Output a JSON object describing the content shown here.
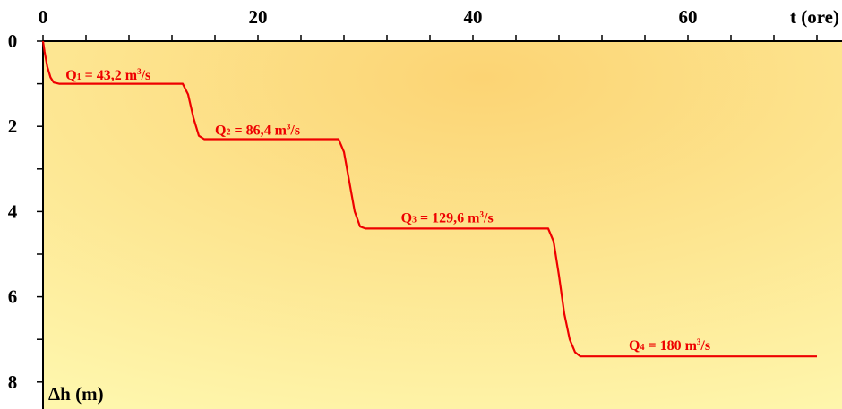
{
  "chart_data": {
    "type": "line",
    "title": "",
    "xlabel": "t (ore)",
    "ylabel": "Δh (m)",
    "xlim": [
      0,
      72
    ],
    "ylim": [
      0,
      8.5
    ],
    "y_inverted": true,
    "x_axis_position": "top",
    "x_ticks": [
      0,
      20,
      40,
      60
    ],
    "y_ticks": [
      0,
      2,
      4,
      6,
      8
    ],
    "grid": false,
    "colors": {
      "line": "#ee0000",
      "background_top": "#fcd978",
      "background_bottom": "#fdf4a6",
      "axis": "#000000"
    },
    "series": [
      {
        "x": [
          0,
          0.15,
          0.4,
          0.7,
          1.0,
          1.5,
          13.0,
          13.5,
          14.0,
          14.5,
          15.0,
          27.5,
          28.0,
          28.5,
          29.0,
          29.5,
          30.0,
          47.0,
          47.5,
          48.0,
          48.5,
          49.0,
          49.5,
          50.0,
          72.0
        ],
        "y": [
          0,
          0.25,
          0.6,
          0.85,
          0.97,
          1.0,
          1.0,
          1.25,
          1.8,
          2.22,
          2.3,
          2.3,
          2.6,
          3.3,
          4.0,
          4.35,
          4.4,
          4.4,
          4.7,
          5.5,
          6.4,
          7.0,
          7.3,
          7.4,
          7.4
        ]
      }
    ],
    "annotations": [
      {
        "label": "Q",
        "sub": "1",
        "rest": " = 43,2 m",
        "sup": "3",
        "unit": "/s",
        "x": 2.1,
        "y": 0.9
      },
      {
        "label": "Q",
        "sub": "2",
        "rest": " = 86,4 m",
        "sup": "3",
        "unit": "/s",
        "x": 16.0,
        "y": 2.2
      },
      {
        "label": "Q",
        "sub": "3",
        "rest": " = 129,6 m",
        "sup": "3",
        "unit": "/s",
        "x": 33.3,
        "y": 4.25
      },
      {
        "label": "Q",
        "sub": "4",
        "rest": " = 180 m",
        "sup": "3",
        "unit": "/s",
        "x": 54.5,
        "y": 7.25
      }
    ]
  }
}
